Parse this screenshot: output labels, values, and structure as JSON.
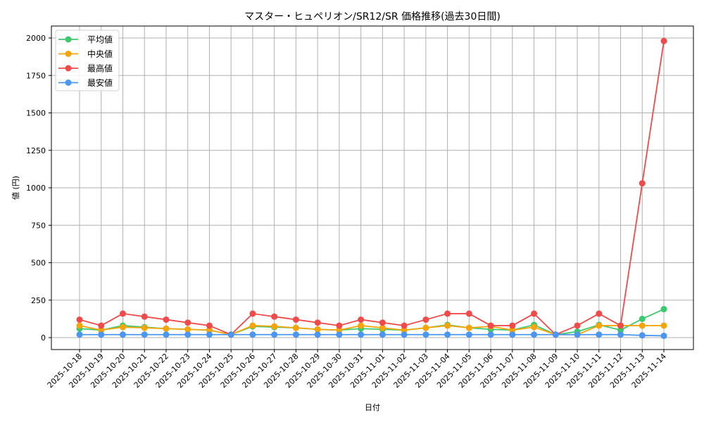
{
  "chart_data": {
    "type": "line",
    "title": "マスター・ヒュペリオン/SR12/SR 価格推移(過去30日間)",
    "xlabel": "日付",
    "ylabel": "値 (円)",
    "ylim": [
      -75,
      2075
    ],
    "yticks": [
      0,
      250,
      500,
      750,
      1000,
      1250,
      1500,
      1750,
      2000
    ],
    "grid": true,
    "legend_position": "upper left",
    "categories": [
      "2025-10-18",
      "2025-10-19",
      "2025-10-20",
      "2025-10-21",
      "2025-10-22",
      "2025-10-23",
      "2025-10-24",
      "2025-10-25",
      "2025-10-26",
      "2025-10-27",
      "2025-10-28",
      "2025-10-29",
      "2025-10-30",
      "2025-10-31",
      "2025-11-01",
      "2025-11-02",
      "2025-11-03",
      "2025-11-04",
      "2025-11-05",
      "2025-11-06",
      "2025-11-07",
      "2025-11-08",
      "2025-11-09",
      "2025-11-10",
      "2025-11-11",
      "2025-11-12",
      "2025-11-13",
      "2025-11-14"
    ],
    "series": [
      {
        "name": "平均値",
        "color": "#3cc86e",
        "values": [
          60,
          50,
          80,
          70,
          60,
          55,
          50,
          20,
          75,
          70,
          65,
          55,
          50,
          60,
          55,
          50,
          65,
          85,
          65,
          55,
          50,
          85,
          20,
          40,
          85,
          50,
          125,
          190
        ]
      },
      {
        "name": "中央値",
        "color": "#f5a50a",
        "values": [
          80,
          50,
          70,
          65,
          60,
          55,
          50,
          20,
          80,
          75,
          65,
          55,
          50,
          80,
          65,
          50,
          65,
          80,
          65,
          75,
          50,
          70,
          20,
          20,
          80,
          80,
          80,
          80
        ]
      },
      {
        "name": "最高値",
        "color": "#f04a4a",
        "values": [
          120,
          80,
          160,
          140,
          120,
          100,
          80,
          20,
          160,
          140,
          120,
          100,
          80,
          120,
          100,
          80,
          120,
          160,
          160,
          80,
          80,
          160,
          20,
          80,
          160,
          80,
          1030,
          1980
        ]
      },
      {
        "name": "最安値",
        "color": "#4a96f0",
        "values": [
          20,
          20,
          20,
          20,
          20,
          20,
          20,
          20,
          20,
          20,
          20,
          20,
          20,
          20,
          20,
          20,
          20,
          20,
          20,
          20,
          20,
          20,
          20,
          20,
          20,
          20,
          15,
          12
        ]
      }
    ]
  }
}
